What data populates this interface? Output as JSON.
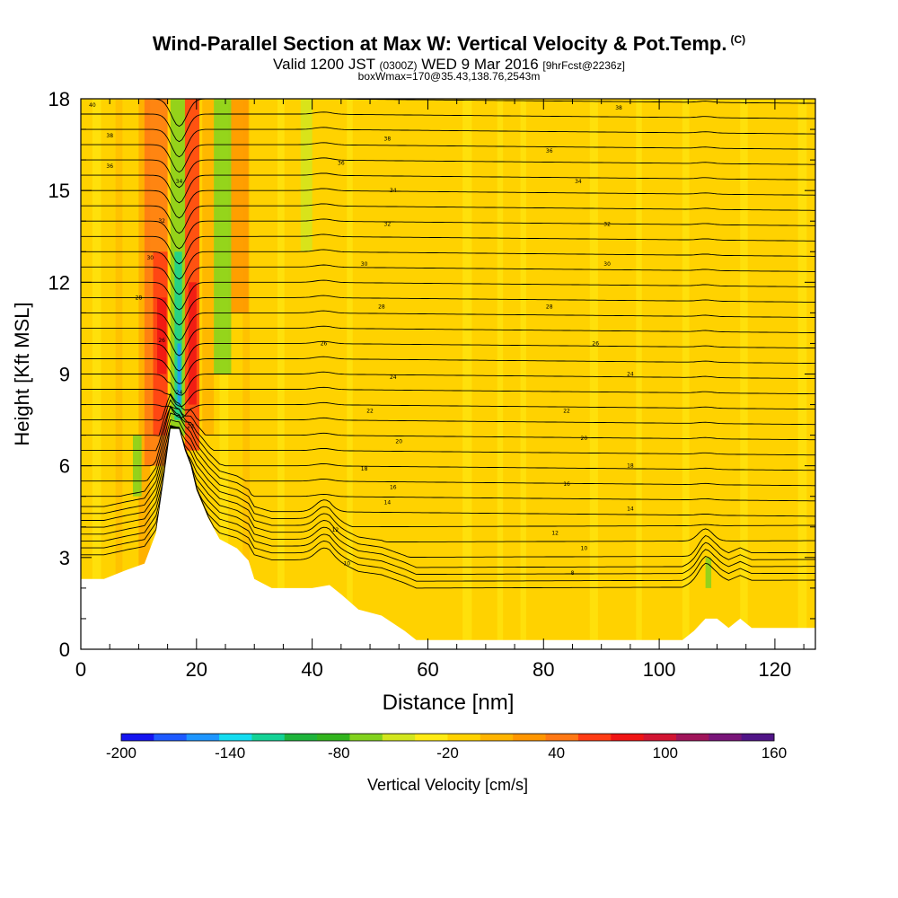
{
  "header": {
    "title": "Wind-Parallel Section at Max W: Vertical Velocity & Pot.Temp.",
    "title_mark": "(C)",
    "subtitle_pre": "Valid 1200 JST",
    "subtitle_utc": "(0300Z)",
    "subtitle_post": "WED 9 Mar 2016",
    "subtitle_fcst": "[9hrFcst@2236z]",
    "subtitle2": "boxWmax=170@35.43,138.76,2543m"
  },
  "chart_data": {
    "type": "heatmap",
    "xlabel": "Distance [nm]",
    "ylabel": "Height [Kft MSL]",
    "xlim": [
      0,
      127
    ],
    "ylim": [
      0,
      18
    ],
    "xticks": [
      0,
      20,
      40,
      60,
      80,
      100,
      120
    ],
    "yticks": [
      0,
      3,
      6,
      9,
      12,
      15,
      18
    ],
    "colorbar": {
      "label": "Vertical Velocity [cm/s]",
      "min": -200,
      "max": 160,
      "step": 20,
      "ticks": [
        -200,
        -140,
        -80,
        -20,
        40,
        100,
        160
      ],
      "colors": [
        "#1414f0",
        "#1e5aff",
        "#1e96ff",
        "#14dcf0",
        "#14d296",
        "#1eb43c",
        "#32b41e",
        "#82d21e",
        "#d2e61e",
        "#ffeb14",
        "#ffd200",
        "#ffb400",
        "#ff9600",
        "#ff7814",
        "#ff3c14",
        "#f01414",
        "#d21432",
        "#a0145a",
        "#781478",
        "#501487"
      ]
    },
    "terrain_profile": [
      [
        0,
        2.3
      ],
      [
        4,
        2.3
      ],
      [
        8,
        2.6
      ],
      [
        11,
        2.8
      ],
      [
        13,
        3.8
      ],
      [
        14.5,
        5.8
      ],
      [
        15.5,
        7.2
      ],
      [
        17,
        7.2
      ],
      [
        18,
        6.5
      ],
      [
        19,
        6.0
      ],
      [
        20,
        5.2
      ],
      [
        22,
        4.3
      ],
      [
        24,
        3.6
      ],
      [
        27,
        3.3
      ],
      [
        29,
        2.9
      ],
      [
        30,
        2.3
      ],
      [
        33,
        2.0
      ],
      [
        36,
        2.0
      ],
      [
        40,
        2.0
      ],
      [
        43,
        2.1
      ],
      [
        45,
        1.8
      ],
      [
        48,
        1.3
      ],
      [
        52,
        1.1
      ],
      [
        56,
        0.6
      ],
      [
        58,
        0.3
      ],
      [
        62,
        0.3
      ],
      [
        70,
        0.3
      ],
      [
        90,
        0.3
      ],
      [
        104,
        0.3
      ],
      [
        106,
        0.6
      ],
      [
        108,
        1.0
      ],
      [
        110,
        1.0
      ],
      [
        112,
        0.7
      ],
      [
        114,
        1.0
      ],
      [
        116,
        0.7
      ],
      [
        120,
        0.7
      ],
      [
        127,
        0.7
      ]
    ],
    "theta_labels": [
      {
        "x": 2,
        "y": 17.8,
        "text": "40"
      },
      {
        "x": 5,
        "y": 16.8,
        "text": "38"
      },
      {
        "x": 5,
        "y": 15.8,
        "text": "36"
      },
      {
        "x": 53,
        "y": 16.7,
        "text": "38"
      },
      {
        "x": 45,
        "y": 15.9,
        "text": "36"
      },
      {
        "x": 54,
        "y": 15.0,
        "text": "34"
      },
      {
        "x": 53,
        "y": 13.9,
        "text": "32"
      },
      {
        "x": 49,
        "y": 12.6,
        "text": "30"
      },
      {
        "x": 52,
        "y": 11.2,
        "text": "28"
      },
      {
        "x": 42,
        "y": 10.0,
        "text": "26"
      },
      {
        "x": 54,
        "y": 8.9,
        "text": "24"
      },
      {
        "x": 50,
        "y": 7.8,
        "text": "22"
      },
      {
        "x": 55,
        "y": 6.8,
        "text": "20"
      },
      {
        "x": 49,
        "y": 5.9,
        "text": "18"
      },
      {
        "x": 54,
        "y": 5.3,
        "text": "16"
      },
      {
        "x": 53,
        "y": 4.8,
        "text": "14"
      },
      {
        "x": 44,
        "y": 3.9,
        "text": "12"
      },
      {
        "x": 46,
        "y": 2.8,
        "text": "10"
      },
      {
        "x": 93,
        "y": 17.7,
        "text": "38"
      },
      {
        "x": 81,
        "y": 16.3,
        "text": "36"
      },
      {
        "x": 86,
        "y": 15.3,
        "text": "34"
      },
      {
        "x": 91,
        "y": 13.9,
        "text": "32"
      },
      {
        "x": 91,
        "y": 12.6,
        "text": "30"
      },
      {
        "x": 81,
        "y": 11.2,
        "text": "28"
      },
      {
        "x": 89,
        "y": 10.0,
        "text": "26"
      },
      {
        "x": 95,
        "y": 9.0,
        "text": "24"
      },
      {
        "x": 84,
        "y": 7.8,
        "text": "22"
      },
      {
        "x": 87,
        "y": 6.9,
        "text": "20"
      },
      {
        "x": 95,
        "y": 6.0,
        "text": "18"
      },
      {
        "x": 84,
        "y": 5.4,
        "text": "16"
      },
      {
        "x": 95,
        "y": 4.6,
        "text": "14"
      },
      {
        "x": 82,
        "y": 3.8,
        "text": "12"
      },
      {
        "x": 87,
        "y": 3.3,
        "text": "10"
      },
      {
        "x": 85,
        "y": 2.5,
        "text": "8"
      },
      {
        "x": 17,
        "y": 15.3,
        "text": "34"
      },
      {
        "x": 14,
        "y": 14.0,
        "text": "32"
      },
      {
        "x": 12,
        "y": 12.8,
        "text": "30"
      },
      {
        "x": 10,
        "y": 11.5,
        "text": "28"
      },
      {
        "x": 14,
        "y": 10.1,
        "text": "26"
      },
      {
        "x": 17,
        "y": 8.4,
        "text": "24"
      },
      {
        "x": 19,
        "y": 7.3,
        "text": "22"
      }
    ]
  }
}
